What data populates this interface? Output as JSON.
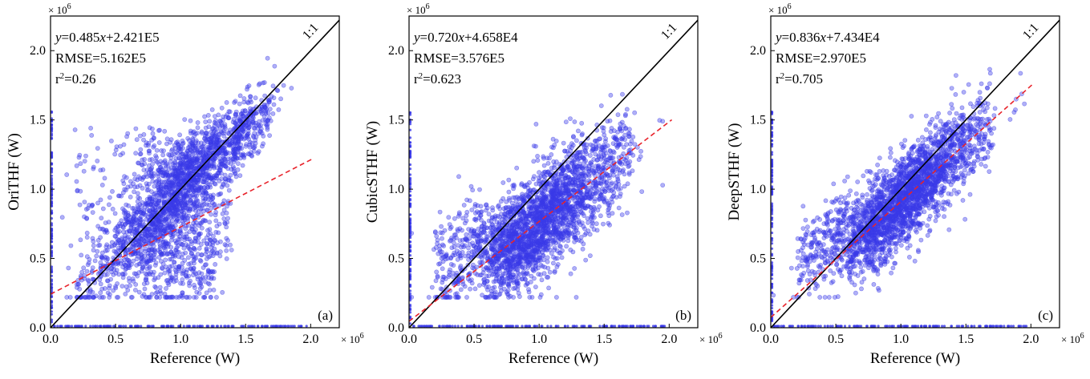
{
  "chart_data": [
    {
      "type": "scatter",
      "panel_label": "(a)",
      "xlabel": "Reference (W)",
      "ylabel": "OriTHF (W)",
      "x_multiplier": "× 10",
      "x_multiplier_exp": "6",
      "y_multiplier": "× 10",
      "y_multiplier_exp": "6",
      "xlim": [
        0,
        2.22
      ],
      "ylim": [
        0,
        2.25
      ],
      "xticks": [
        0.0,
        0.5,
        1.0,
        1.5,
        2.0
      ],
      "xtick_labels": [
        "0.0",
        "0.5",
        "1.0",
        "1.5",
        "2.0"
      ],
      "yticks": [
        0.0,
        0.5,
        1.0,
        1.5,
        2.0
      ],
      "ytick_labels": [
        "0.0",
        "0.5",
        "1.0",
        "1.5",
        "2.0"
      ],
      "fit_equation": {
        "y": "y",
        "coef": "=0.485",
        "x": "x",
        "intercept": "+2.421E5"
      },
      "rmse_text": "RMSE=5.162E5",
      "r2_text": {
        "r": "r",
        "exp": "2",
        "value": "=0.26"
      },
      "one_to_one_label": "1:1",
      "fit": {
        "slope": 0.485,
        "intercept": 0.2421
      },
      "scatter_style": {
        "color": "#3a3ae8",
        "opacity": 0.4
      },
      "one_to_one_color": "#000000",
      "fit_color": "#e8222a"
    },
    {
      "type": "scatter",
      "panel_label": "(b)",
      "xlabel": "Reference (W)",
      "ylabel": "CubicSTHF (W)",
      "x_multiplier": "× 10",
      "x_multiplier_exp": "6",
      "y_multiplier": "× 10",
      "y_multiplier_exp": "6",
      "xlim": [
        0,
        2.22
      ],
      "ylim": [
        0,
        2.25
      ],
      "xticks": [
        0.0,
        0.5,
        1.0,
        1.5,
        2.0
      ],
      "xtick_labels": [
        "0.0",
        "0.5",
        "1.0",
        "1.5",
        "2.0"
      ],
      "yticks": [
        0.0,
        0.5,
        1.0,
        1.5,
        2.0
      ],
      "ytick_labels": [
        "0.0",
        "0.5",
        "1.0",
        "1.5",
        "2.0"
      ],
      "fit_equation": {
        "y": "y",
        "coef": "=0.720",
        "x": "x",
        "intercept": "+4.658E4"
      },
      "rmse_text": "RMSE=3.576E5",
      "r2_text": {
        "r": "r",
        "exp": "2",
        "value": "=0.623"
      },
      "one_to_one_label": "1:1",
      "fit": {
        "slope": 0.72,
        "intercept": 0.04658
      },
      "scatter_style": {
        "color": "#3a3ae8",
        "opacity": 0.4
      },
      "one_to_one_color": "#000000",
      "fit_color": "#e8222a"
    },
    {
      "type": "scatter",
      "panel_label": "(c)",
      "xlabel": "Reference (W)",
      "ylabel": "DeepSTHF (W)",
      "x_multiplier": "× 10",
      "x_multiplier_exp": "6",
      "y_multiplier": "× 10",
      "y_multiplier_exp": "6",
      "xlim": [
        0,
        2.22
      ],
      "ylim": [
        0,
        2.25
      ],
      "xticks": [
        0.0,
        0.5,
        1.0,
        1.5,
        2.0
      ],
      "xtick_labels": [
        "0.0",
        "0.5",
        "1.0",
        "1.5",
        "2.0"
      ],
      "yticks": [
        0.0,
        0.5,
        1.0,
        1.5,
        2.0
      ],
      "ytick_labels": [
        "0.0",
        "0.5",
        "1.0",
        "1.5",
        "2.0"
      ],
      "fit_equation": {
        "y": "y",
        "coef": "=0.836",
        "x": "x",
        "intercept": "+7.434E4"
      },
      "rmse_text": "RMSE=2.970E5",
      "r2_text": {
        "r": "r",
        "exp": "2",
        "value": "=0.705"
      },
      "one_to_one_label": "1:1",
      "fit": {
        "slope": 0.836,
        "intercept": 0.07434
      },
      "scatter_style": {
        "color": "#3a3ae8",
        "opacity": 0.4
      },
      "one_to_one_color": "#000000",
      "fit_color": "#e8222a"
    }
  ]
}
